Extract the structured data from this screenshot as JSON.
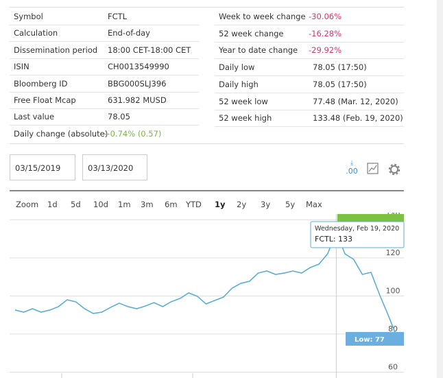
{
  "info_left": [
    {
      "label": "Symbol",
      "value": "FCTL"
    },
    {
      "label": "Calculation",
      "value": "End-of-day"
    },
    {
      "label": "Dissemination period",
      "value": "18:00 CET-18:00 CET"
    },
    {
      "label": "ISIN",
      "value": "CH0013549990"
    },
    {
      "label": "Bloomberg ID",
      "value": "BBG000SLJ396"
    },
    {
      "label": "Free Float Mcap",
      "value": "631.982 MUSD"
    },
    {
      "label": "Last value",
      "value": "78.05"
    }
  ],
  "daily_change": {
    "label": "Daily change (absolute)",
    "value": "+0.74% (0.57)"
  },
  "info_right": [
    {
      "label": "Week to week change",
      "value": "-30.06%",
      "negative": true
    },
    {
      "label": "52 week change",
      "value": "-16.28%",
      "negative": true
    },
    {
      "label": "Year to date change",
      "value": "-29.92%",
      "negative": true
    },
    {
      "label": "Daily low",
      "value": "78.05 (17:50)",
      "negative": false
    },
    {
      "label": "Daily high",
      "value": "78.05 (17:50)",
      "negative": false
    },
    {
      "label": "52 week low",
      "value": "77.48 (Mar. 12, 2020)",
      "negative": false
    },
    {
      "label": "52 week high",
      "value": "133.48 (Feb. 19, 2020)",
      "negative": false
    }
  ],
  "date_from": "03/15/2019",
  "date_to": "03/13/2020",
  "decimals_icon": ".00",
  "zoom": {
    "label": "Zoom",
    "options": [
      "1d",
      "5d",
      "10d",
      "1m",
      "3m",
      "6m",
      "YTD",
      "1y",
      "2y",
      "3y",
      "5y",
      "Max"
    ],
    "selected": 7
  },
  "chart_data": {
    "type": "line",
    "series": [
      {
        "color": "#5aaed4",
        "values": [
          92.6,
          91.5,
          93.3,
          91.5,
          92.6,
          94.4,
          98.0,
          96.9,
          93.3,
          90.8,
          91.5,
          94.0,
          96.2,
          94.4,
          93.3,
          94.7,
          96.5,
          94.4,
          97.0,
          98.7,
          101.6,
          99.8,
          95.8,
          97.6,
          99.4,
          104.1,
          106.6,
          107.7,
          112.0,
          113.1,
          111.3,
          112.0,
          113.1,
          112.0,
          114.9,
          116.7,
          122.1,
          133.5,
          122.1,
          119.2,
          111.3,
          112.4,
          100.5,
          89.7,
          78.0
        ]
      }
    ],
    "ylim": [
      58,
      143
    ],
    "yticks": [
      60,
      80,
      100,
      120,
      140
    ],
    "grid": true,
    "tooltip": {
      "date": "Wednesday, Feb 19, 2020",
      "text": "FCTL: 133",
      "index": 37
    },
    "low_label": {
      "text": "Low: 77",
      "value": 77.48
    }
  }
}
